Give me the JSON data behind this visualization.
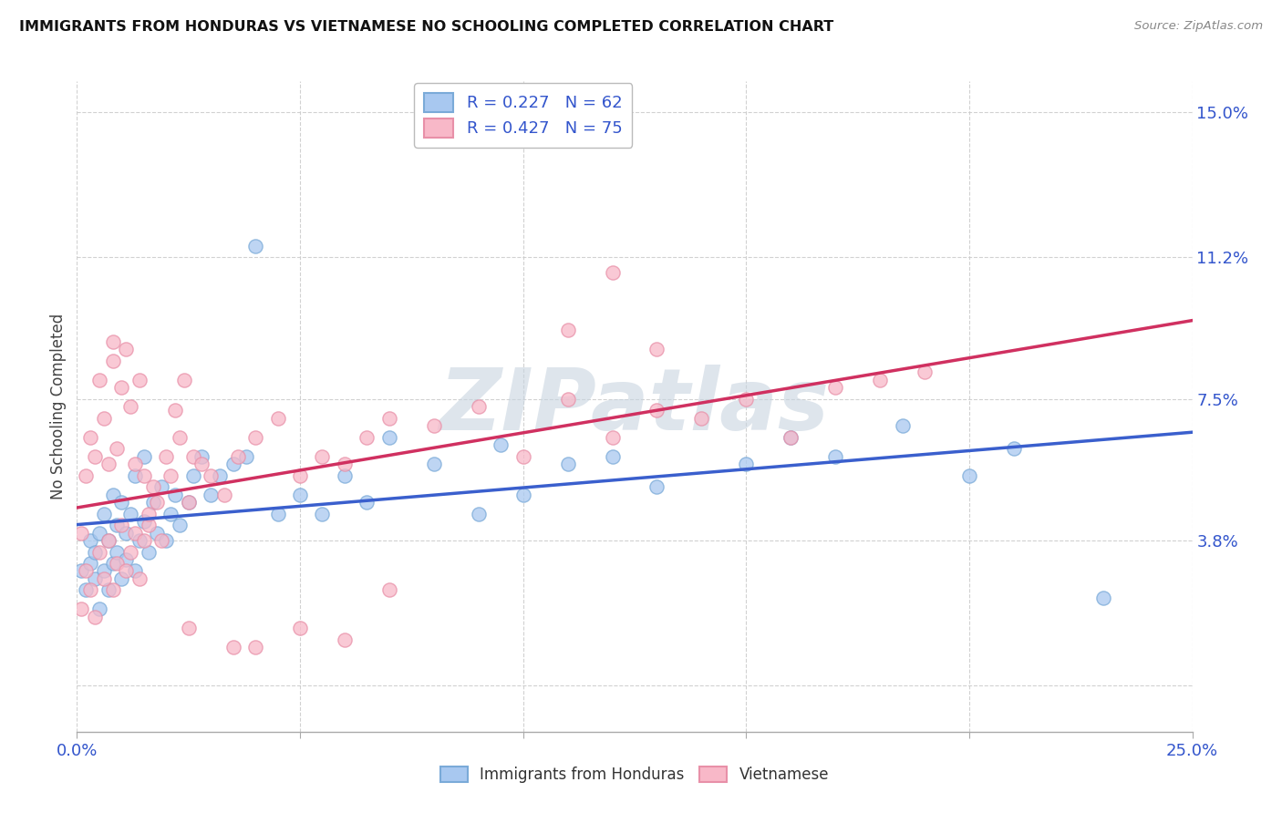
{
  "title": "IMMIGRANTS FROM HONDURAS VS VIETNAMESE NO SCHOOLING COMPLETED CORRELATION CHART",
  "source": "Source: ZipAtlas.com",
  "ylabel": "No Schooling Completed",
  "yticks": [
    0.0,
    0.038,
    0.075,
    0.112,
    0.15
  ],
  "ytick_labels": [
    "",
    "3.8%",
    "7.5%",
    "11.2%",
    "15.0%"
  ],
  "xticks": [
    0.0,
    0.05,
    0.1,
    0.15,
    0.2,
    0.25
  ],
  "xtick_labels": [
    "0.0%",
    "",
    "",
    "",
    "",
    "25.0%"
  ],
  "xlim": [
    0.0,
    0.25
  ],
  "ylim": [
    -0.012,
    0.158
  ],
  "legend1_label": "R = 0.227   N = 62",
  "legend2_label": "R = 0.427   N = 75",
  "blue_face": "#A8C8F0",
  "blue_edge": "#7AAAD8",
  "pink_face": "#F8B8C8",
  "pink_edge": "#E890A8",
  "trend_blue": "#3A5FCD",
  "trend_pink": "#D03060",
  "watermark": "ZIPatlas",
  "watermark_color": "#C8D4E0",
  "legend_r_color": "#3355CC",
  "legend_n_color": "#3355CC",
  "label_color": "#3355CC",
  "background_color": "#FFFFFF",
  "grid_color": "#CCCCCC",
  "blue_scatter_x": [
    0.001,
    0.002,
    0.003,
    0.003,
    0.004,
    0.004,
    0.005,
    0.005,
    0.006,
    0.006,
    0.007,
    0.007,
    0.008,
    0.008,
    0.009,
    0.009,
    0.01,
    0.01,
    0.011,
    0.011,
    0.012,
    0.013,
    0.013,
    0.014,
    0.015,
    0.015,
    0.016,
    0.017,
    0.018,
    0.019,
    0.02,
    0.021,
    0.022,
    0.023,
    0.025,
    0.026,
    0.028,
    0.03,
    0.032,
    0.035,
    0.038,
    0.04,
    0.045,
    0.05,
    0.055,
    0.06,
    0.065,
    0.07,
    0.08,
    0.09,
    0.095,
    0.1,
    0.11,
    0.12,
    0.13,
    0.15,
    0.16,
    0.17,
    0.185,
    0.2,
    0.21,
    0.23
  ],
  "blue_scatter_y": [
    0.03,
    0.025,
    0.032,
    0.038,
    0.028,
    0.035,
    0.02,
    0.04,
    0.03,
    0.045,
    0.025,
    0.038,
    0.032,
    0.05,
    0.035,
    0.042,
    0.028,
    0.048,
    0.033,
    0.04,
    0.045,
    0.03,
    0.055,
    0.038,
    0.043,
    0.06,
    0.035,
    0.048,
    0.04,
    0.052,
    0.038,
    0.045,
    0.05,
    0.042,
    0.048,
    0.055,
    0.06,
    0.05,
    0.055,
    0.058,
    0.06,
    0.115,
    0.045,
    0.05,
    0.045,
    0.055,
    0.048,
    0.065,
    0.058,
    0.045,
    0.063,
    0.05,
    0.058,
    0.06,
    0.052,
    0.058,
    0.065,
    0.06,
    0.068,
    0.055,
    0.062,
    0.023
  ],
  "pink_scatter_x": [
    0.001,
    0.001,
    0.002,
    0.002,
    0.003,
    0.003,
    0.004,
    0.004,
    0.005,
    0.005,
    0.006,
    0.006,
    0.007,
    0.007,
    0.008,
    0.008,
    0.009,
    0.009,
    0.01,
    0.01,
    0.011,
    0.011,
    0.012,
    0.012,
    0.013,
    0.013,
    0.014,
    0.014,
    0.015,
    0.015,
    0.016,
    0.016,
    0.017,
    0.018,
    0.019,
    0.02,
    0.021,
    0.022,
    0.023,
    0.024,
    0.025,
    0.026,
    0.028,
    0.03,
    0.033,
    0.036,
    0.04,
    0.045,
    0.05,
    0.055,
    0.06,
    0.065,
    0.07,
    0.08,
    0.09,
    0.1,
    0.11,
    0.12,
    0.13,
    0.14,
    0.15,
    0.16,
    0.17,
    0.18,
    0.19,
    0.11,
    0.12,
    0.13,
    0.04,
    0.05,
    0.06,
    0.025,
    0.035,
    0.008,
    0.07
  ],
  "pink_scatter_y": [
    0.02,
    0.04,
    0.03,
    0.055,
    0.025,
    0.065,
    0.018,
    0.06,
    0.035,
    0.08,
    0.028,
    0.07,
    0.038,
    0.058,
    0.025,
    0.085,
    0.032,
    0.062,
    0.042,
    0.078,
    0.03,
    0.088,
    0.035,
    0.073,
    0.04,
    0.058,
    0.028,
    0.08,
    0.038,
    0.055,
    0.042,
    0.045,
    0.052,
    0.048,
    0.038,
    0.06,
    0.055,
    0.072,
    0.065,
    0.08,
    0.048,
    0.06,
    0.058,
    0.055,
    0.05,
    0.06,
    0.065,
    0.07,
    0.055,
    0.06,
    0.058,
    0.065,
    0.07,
    0.068,
    0.073,
    0.06,
    0.075,
    0.065,
    0.072,
    0.07,
    0.075,
    0.065,
    0.078,
    0.08,
    0.082,
    0.093,
    0.108,
    0.088,
    0.01,
    0.015,
    0.012,
    0.015,
    0.01,
    0.09,
    0.025
  ]
}
